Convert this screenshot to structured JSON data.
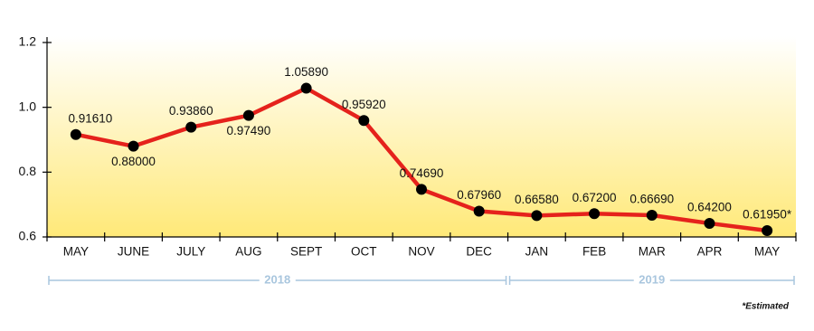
{
  "chart_data": {
    "type": "line",
    "categories": [
      "MAY",
      "JUNE",
      "JULY",
      "AUG",
      "SEPT",
      "OCT",
      "NOV",
      "DEC",
      "JAN",
      "FEB",
      "MAR",
      "APR",
      "MAY"
    ],
    "values": [
      0.9161,
      0.88,
      0.9386,
      0.9749,
      1.0589,
      0.9592,
      0.7469,
      0.6796,
      0.6658,
      0.672,
      0.6669,
      0.642,
      0.6195
    ],
    "value_labels": [
      "0.91610",
      "0.88000",
      "0.93860",
      "0.97490",
      "1.05890",
      "0.95920",
      "0.74690",
      "0.67960",
      "0.66580",
      "0.67200",
      "0.66690",
      "0.64200",
      "0.61950*"
    ],
    "color": "#e5221c",
    "marker_color": "#000000",
    "ylim": [
      0.6,
      1.2
    ],
    "yticks": [
      0.6,
      0.8,
      {
        "value": 1,
        "label": "1.0"
      },
      1.2
    ],
    "x_groups": [
      "2018",
      "2019"
    ],
    "footnote": "*Estimated"
  }
}
